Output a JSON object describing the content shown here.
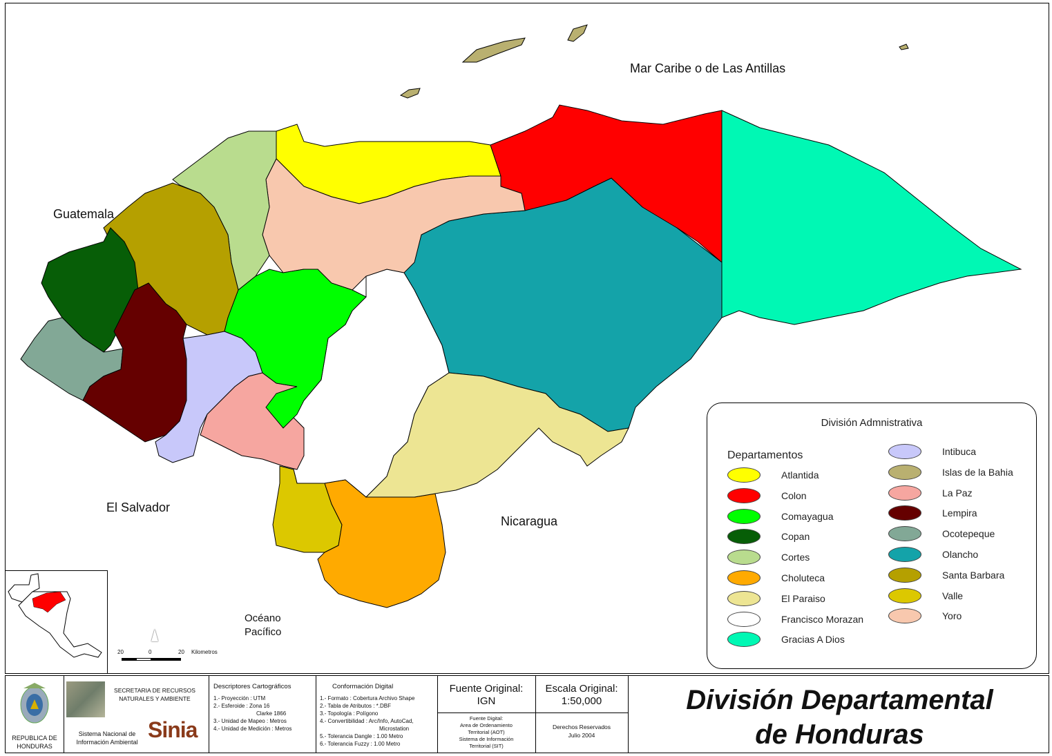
{
  "map_labels": {
    "sea": "Mar Caribe o de Las Antillas",
    "guatemala": "Guatemala",
    "el_salvador": "El Salvador",
    "nicaragua": "Nicaragua",
    "ocean_line1": "Océano",
    "ocean_line2": "Pacífico"
  },
  "scale_bar": {
    "left": "20",
    "mid": "0",
    "right": "20",
    "unit": "Kilometros"
  },
  "legend": {
    "title": "División Admnistrativa",
    "subtitle": "Departamentos",
    "items": [
      {
        "name": "Atlantida",
        "color": "#ffff00"
      },
      {
        "name": "Colon",
        "color": "#ff0000"
      },
      {
        "name": "Comayagua",
        "color": "#00ff00"
      },
      {
        "name": "Copan",
        "color": "#075e07"
      },
      {
        "name": "Cortes",
        "color": "#b9dc8e"
      },
      {
        "name": "Choluteca",
        "color": "#ffaa00"
      },
      {
        "name": "El Paraiso",
        "color": "#ede593"
      },
      {
        "name": "Francisco Morazan",
        "color": "#ffffff"
      },
      {
        "name": "Gracias A Dios",
        "color": "#00f8b4"
      },
      {
        "name": "Intibuca",
        "color": "#c8c8fa"
      },
      {
        "name": "Islas de la Bahia",
        "color": "#b9b070"
      },
      {
        "name": "La Paz",
        "color": "#f6a6a0"
      },
      {
        "name": "Lempira",
        "color": "#650000"
      },
      {
        "name": "Ocotepeque",
        "color": "#82a896"
      },
      {
        "name": "Olancho",
        "color": "#14a3a9"
      },
      {
        "name": "Santa Barbara",
        "color": "#b5a000"
      },
      {
        "name": "Valle",
        "color": "#dcc800"
      },
      {
        "name": "Yoro",
        "color": "#f8c8ae"
      }
    ]
  },
  "footer": {
    "coat": "REPUBLICA DE HONDURAS",
    "serna": "SECRETARIA DE RECURSOS NATURALES Y AMBIENTE",
    "sinia_text": "Sistema Nacional de Información Ambiental",
    "sinia_logo": "Sinia",
    "descriptores": {
      "title": "Descriptores Cartográficos",
      "lines": [
        "1.- Proyección : UTM",
        "2.- Esferoide : Zona 16",
        "Clarke 1866",
        "3.- Unidad de Mapeo : Metros",
        "4.- Unidad de Medición : Metros"
      ]
    },
    "conformacion": {
      "title": "Conformación Digital",
      "lines": [
        "1.- Formato : Cobertura Archivo Shape",
        "2.- Tabla de Atributos : *.DBF",
        "3.- Topología : Polígono",
        "4.- Convertibilidad : Arc/Info, AutoCad,",
        "Microstation",
        "5.- Tolerancia Dangle : 1.00 Metro",
        "6.- Tolerancia Fuzzy : 1.00 Metro"
      ]
    },
    "fuente": {
      "title": "Fuente Original:",
      "value": "IGN",
      "digital": [
        "Fuente Digital:",
        "Area de Ordenamiento",
        "Territorial (AOT)",
        "Sistema de Información",
        "Territorial (SIT)"
      ]
    },
    "escala": {
      "title": "Escala Original:",
      "value": "1:50,000",
      "rights": "Derechos Reservados",
      "date": "Julio 2004"
    },
    "title_line1": "División Departamental",
    "title_line2": "de Honduras"
  }
}
